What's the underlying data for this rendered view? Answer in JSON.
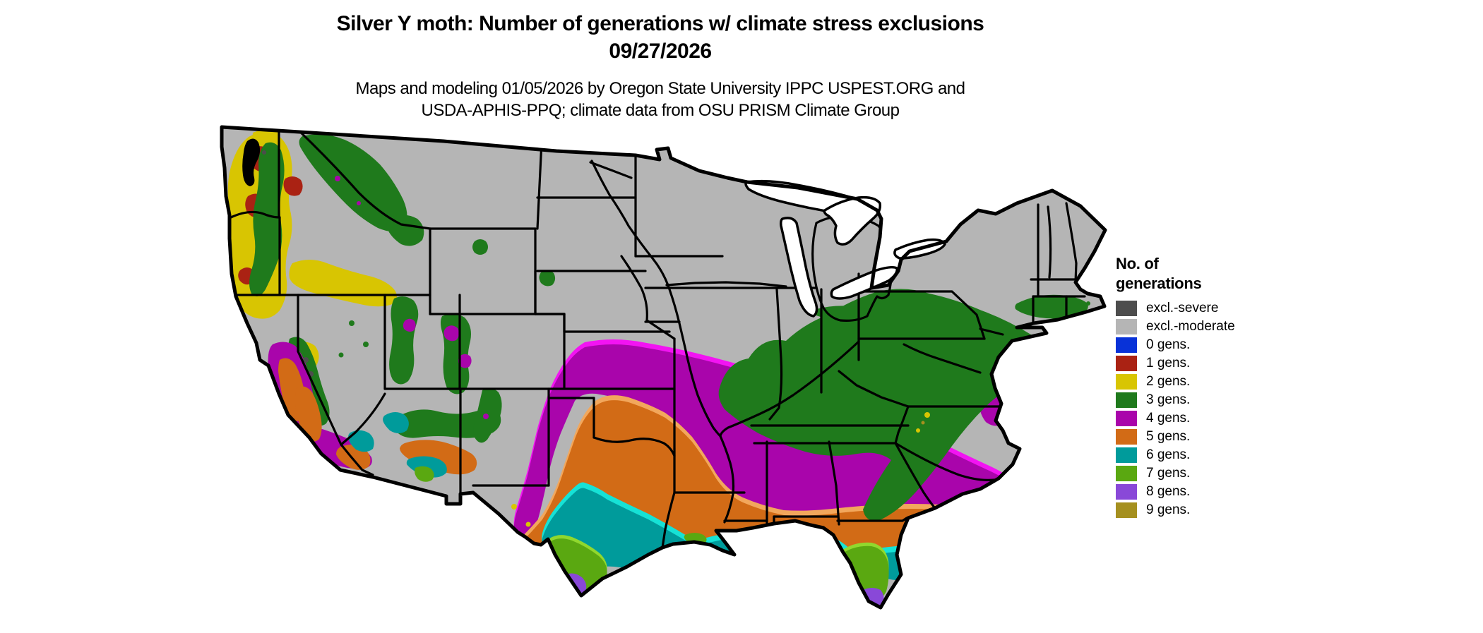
{
  "header": {
    "title_line1": "Silver Y moth: Number of generations w/ climate stress exclusions",
    "title_line2": "09/27/2026",
    "subtitle_line1": "Maps and modeling 01/05/2026 by Oregon State University IPPC USPEST.ORG and",
    "subtitle_line2": "USDA-APHIS-PPQ; climate data from OSU PRISM Climate Group"
  },
  "legend": {
    "title_line1": "No. of",
    "title_line2": "generations",
    "entries": [
      {
        "key": "excl_severe",
        "label": "excl.-severe",
        "color": "#4d4d4d"
      },
      {
        "key": "excl_moderate",
        "label": "excl.-moderate",
        "color": "#b5b5b5"
      },
      {
        "key": "gens0",
        "label": "0 gens.",
        "color": "#0832d8"
      },
      {
        "key": "gens1",
        "label": "1 gens.",
        "color": "#aa2213"
      },
      {
        "key": "gens2",
        "label": "2 gens.",
        "color": "#d8c502"
      },
      {
        "key": "gens3",
        "label": "3 gens.",
        "color": "#1f7a1c"
      },
      {
        "key": "gens4",
        "label": "4 gens.",
        "color": "#a905ab"
      },
      {
        "key": "gens5",
        "label": "5 gens.",
        "color": "#d26b16"
      },
      {
        "key": "gens6",
        "label": "6 gens.",
        "color": "#009b9b"
      },
      {
        "key": "gens7",
        "label": "7 gens.",
        "color": "#5aa811"
      },
      {
        "key": "gens8",
        "label": "8 gens.",
        "color": "#8948d8"
      },
      {
        "key": "gens9",
        "label": "9 gens.",
        "color": "#a5901f"
      }
    ]
  },
  "map": {
    "colors": {
      "base_excluded_moderate": "#b5b5b5",
      "excl_severe": "#4d4d4d",
      "gens1": "#aa2213",
      "gens2": "#d8c502",
      "gens3": "#1f7a1c",
      "gens3_light": "#5ec878",
      "gens4": "#a905ab",
      "gens4_light": "#f214f2",
      "gens5": "#d26b16",
      "gens5_light": "#f2a75c",
      "gens6": "#009b9b",
      "gens6_light": "#16e2d6",
      "gens7": "#5aa811",
      "gens7_light": "#90d82e",
      "gens8": "#8948d8",
      "gens9": "#a5901f",
      "border": "#000000",
      "water": "#ffffff"
    }
  }
}
